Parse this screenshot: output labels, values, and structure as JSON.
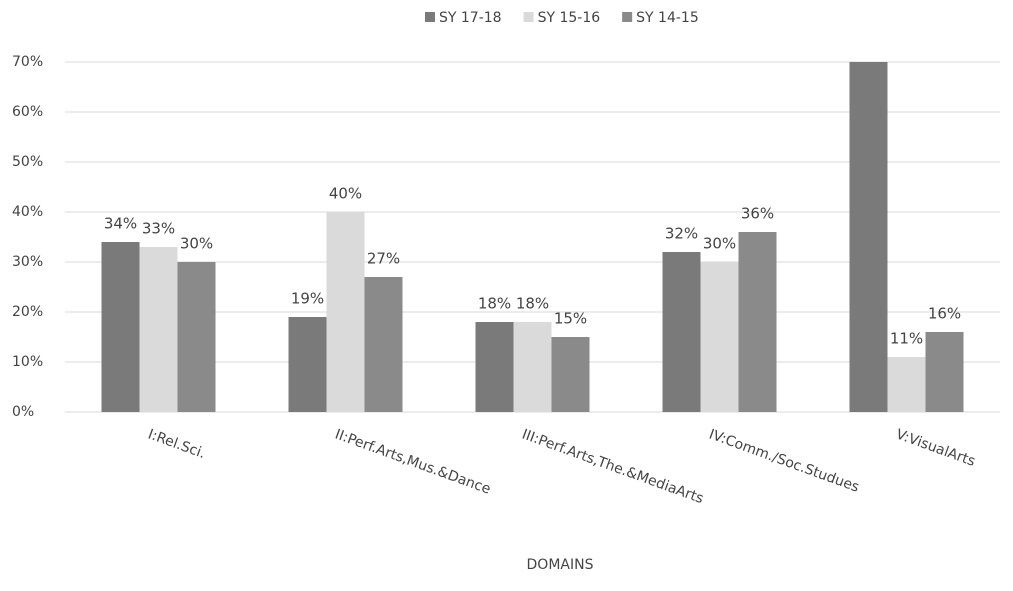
{
  "chart_data": {
    "type": "bar",
    "categories": [
      "I:Rel.Sci.",
      "II:Perf.Arts,Mus.&Dance",
      "III:Perf.Arts,The.&MediaArts",
      "IV:Comm./Soc.Studues",
      "V:VisualArts"
    ],
    "series": [
      {
        "name": "SY 17-18",
        "color": "#7a7a7a",
        "values": [
          34,
          19,
          18,
          32,
          70
        ],
        "value_labels": [
          "34%",
          "19%",
          "18%",
          "32%",
          null
        ]
      },
      {
        "name": "SY 15-16",
        "color": "#dadada",
        "values": [
          33,
          40,
          18,
          30,
          11
        ],
        "value_labels": [
          "33%",
          "40%",
          "18%",
          "30%",
          "11%"
        ]
      },
      {
        "name": "SY 14-15",
        "color": "#8a8a8a",
        "values": [
          30,
          27,
          15,
          36,
          16
        ],
        "value_labels": [
          "30%",
          "27%",
          "15%",
          "36%",
          "16%"
        ]
      }
    ],
    "x_label": "DOMAINS",
    "ylim": [
      0,
      70
    ],
    "yticks": [
      {
        "value": 0,
        "label": "0%"
      },
      {
        "value": 10,
        "label": "10%"
      },
      {
        "value": 20,
        "label": "20%"
      },
      {
        "value": 30,
        "label": "30%"
      },
      {
        "value": 40,
        "label": "40%"
      },
      {
        "value": 50,
        "label": "50%"
      },
      {
        "value": 60,
        "label": "60%"
      },
      {
        "value": 70,
        "label": "70%"
      }
    ],
    "grid": true,
    "legend": "top"
  }
}
